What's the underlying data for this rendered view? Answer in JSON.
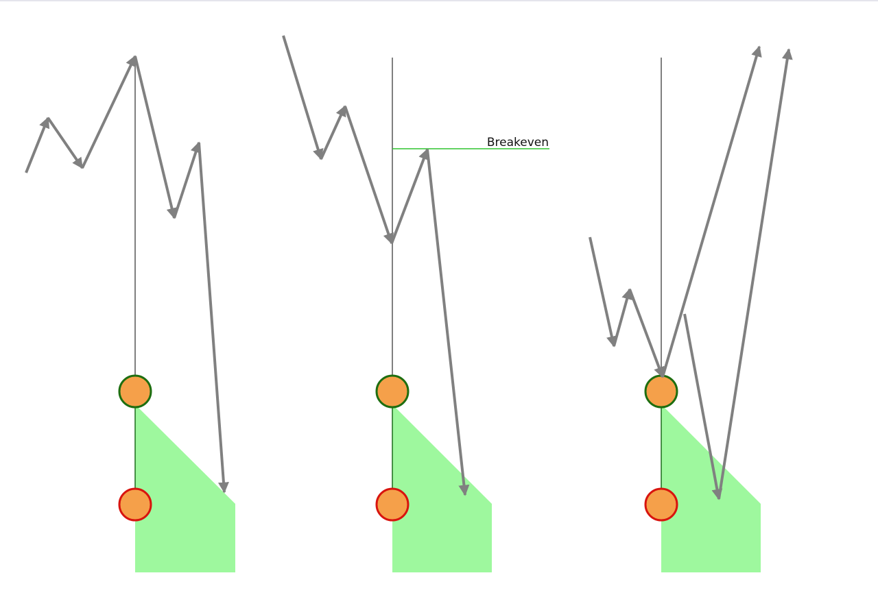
{
  "label": "Breakeven"
}
